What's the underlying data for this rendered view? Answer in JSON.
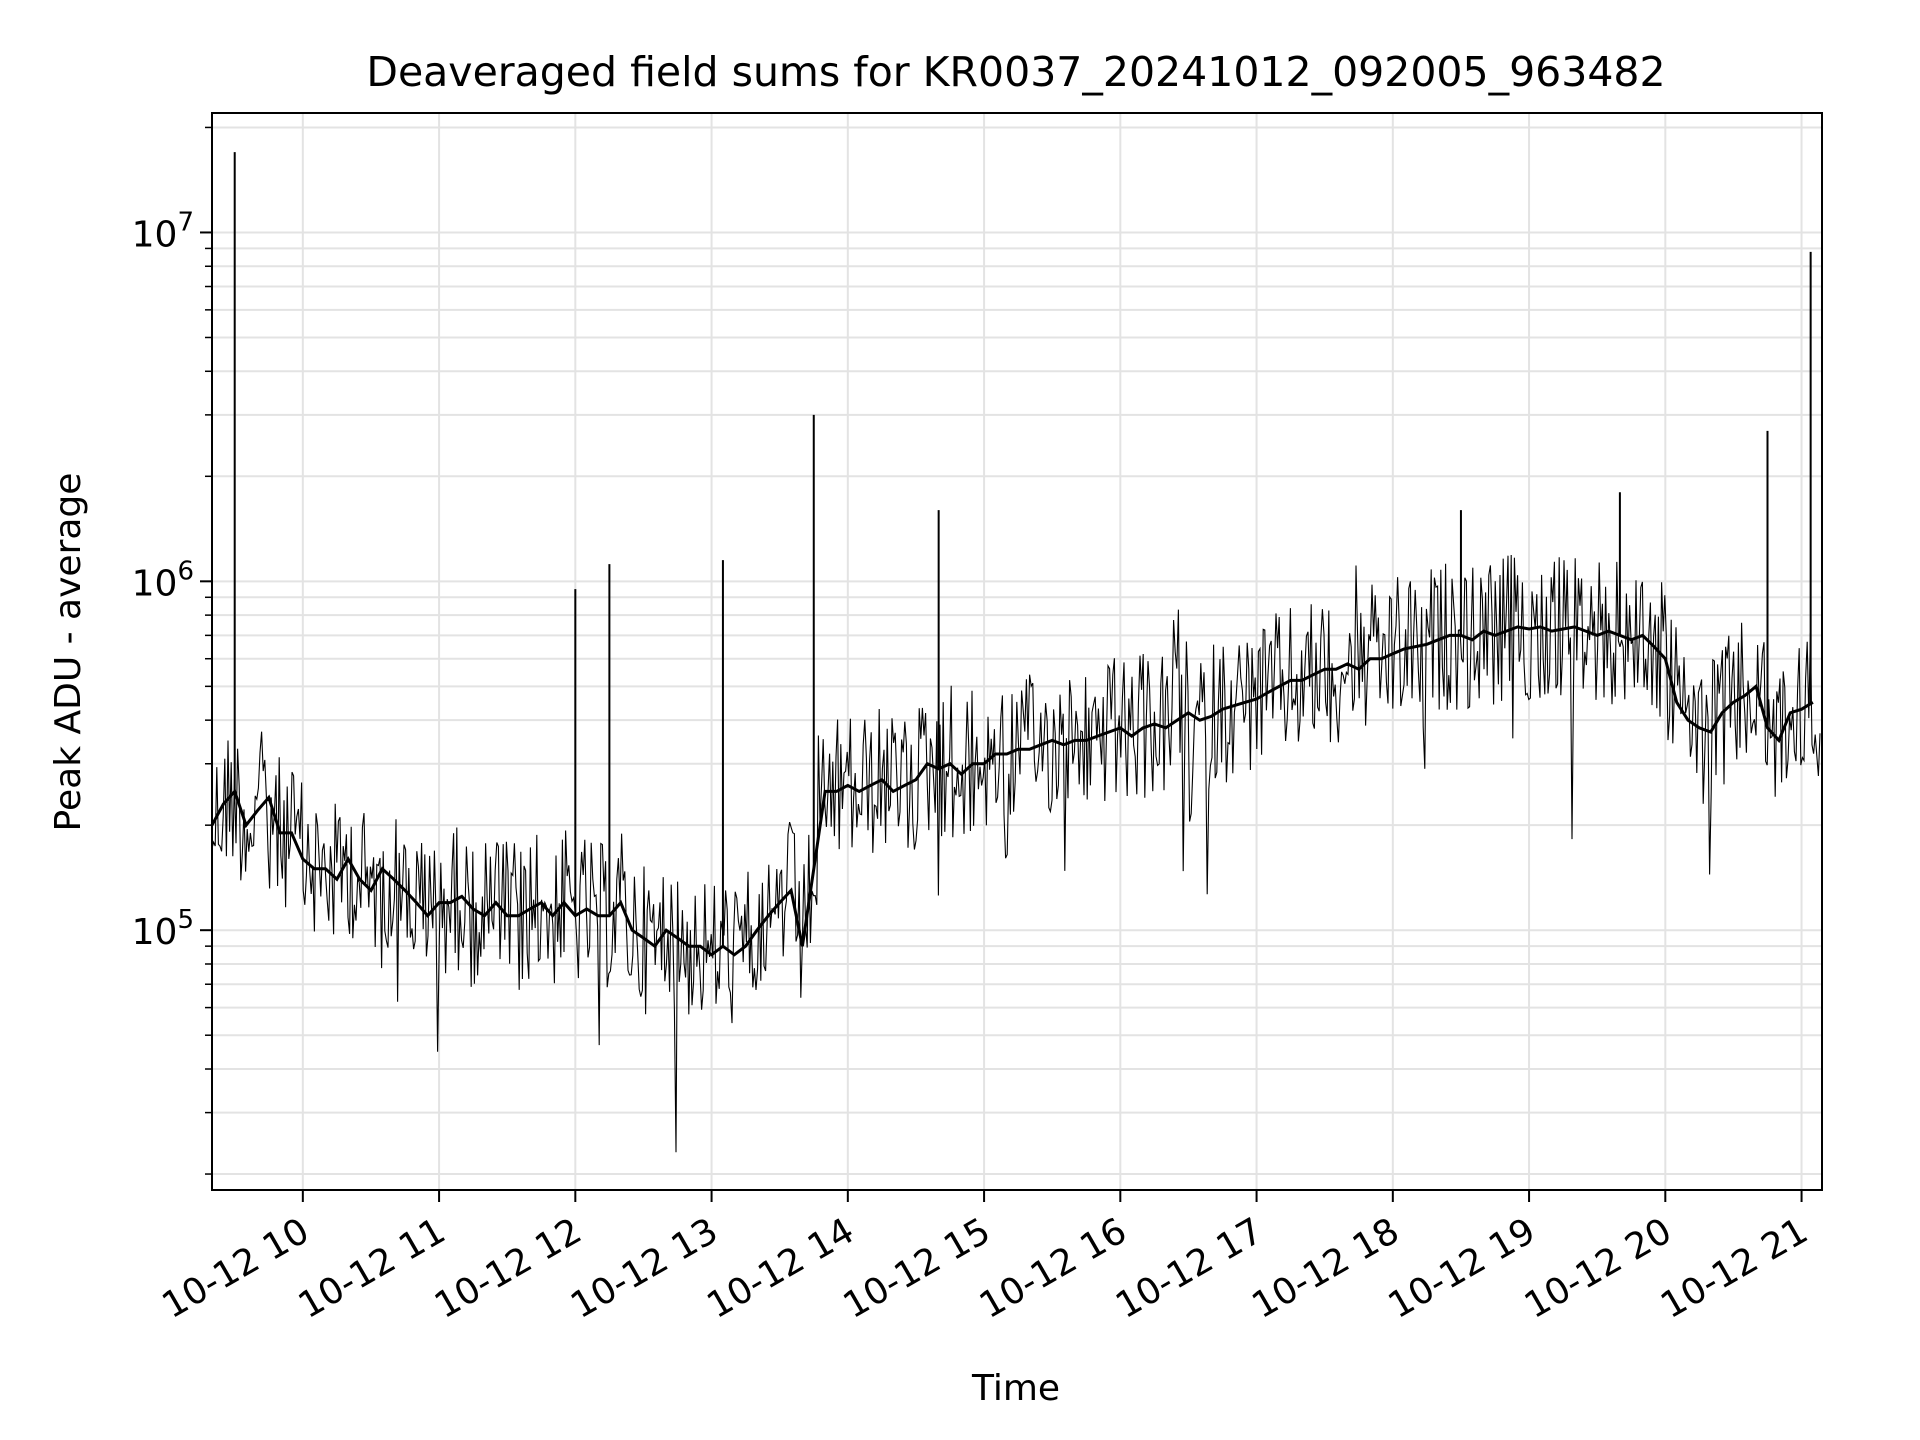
{
  "chart_data": {
    "type": "line",
    "title": "Deaveraged field sums for KR0037_20241012_092005_963482",
    "xlabel": "Time",
    "ylabel": "Peak ADU - average",
    "xlim": [
      "2024-10-12 09:20",
      "2024-10-12 21:09"
    ],
    "ylim": [
      18000,
      22000000
    ],
    "yscale": "log",
    "grid": true,
    "line_color": "#000000",
    "x_ticks": [
      {
        "t": "2024-10-12 10:00",
        "label": "10-12 10"
      },
      {
        "t": "2024-10-12 11:00",
        "label": "10-12 11"
      },
      {
        "t": "2024-10-12 12:00",
        "label": "10-12 12"
      },
      {
        "t": "2024-10-12 13:00",
        "label": "10-12 13"
      },
      {
        "t": "2024-10-12 14:00",
        "label": "10-12 14"
      },
      {
        "t": "2024-10-12 15:00",
        "label": "10-12 15"
      },
      {
        "t": "2024-10-12 16:00",
        "label": "10-12 16"
      },
      {
        "t": "2024-10-12 17:00",
        "label": "10-12 17"
      },
      {
        "t": "2024-10-12 18:00",
        "label": "10-12 18"
      },
      {
        "t": "2024-10-12 19:00",
        "label": "10-12 19"
      },
      {
        "t": "2024-10-12 20:00",
        "label": "10-12 20"
      },
      {
        "t": "2024-10-12 21:00",
        "label": "10-12 21"
      }
    ],
    "y_ticks": [
      {
        "value": 100000,
        "base": "10",
        "exp": "5"
      },
      {
        "value": 1000000,
        "base": "10",
        "exp": "6"
      },
      {
        "value": 10000000,
        "base": "10",
        "exp": "7"
      }
    ],
    "series": [
      {
        "x": [
          "2024-10-12 09:20",
          "2024-10-12 09:25",
          "2024-10-12 09:30",
          "2024-10-12 09:35",
          "2024-10-12 09:40",
          "2024-10-12 09:45",
          "2024-10-12 09:50",
          "2024-10-12 09:55",
          "2024-10-12 10:00",
          "2024-10-12 10:05",
          "2024-10-12 10:10",
          "2024-10-12 10:15",
          "2024-10-12 10:20",
          "2024-10-12 10:25",
          "2024-10-12 10:30",
          "2024-10-12 10:35",
          "2024-10-12 10:40",
          "2024-10-12 10:45",
          "2024-10-12 10:50",
          "2024-10-12 10:55",
          "2024-10-12 11:00",
          "2024-10-12 11:05",
          "2024-10-12 11:10",
          "2024-10-12 11:15",
          "2024-10-12 11:20",
          "2024-10-12 11:25",
          "2024-10-12 11:30",
          "2024-10-12 11:35",
          "2024-10-12 11:40",
          "2024-10-12 11:45",
          "2024-10-12 11:50",
          "2024-10-12 11:55",
          "2024-10-12 12:00",
          "2024-10-12 12:05",
          "2024-10-12 12:10",
          "2024-10-12 12:15",
          "2024-10-12 12:20",
          "2024-10-12 12:25",
          "2024-10-12 12:30",
          "2024-10-12 12:35",
          "2024-10-12 12:40",
          "2024-10-12 12:45",
          "2024-10-12 12:50",
          "2024-10-12 12:55",
          "2024-10-12 13:00",
          "2024-10-12 13:05",
          "2024-10-12 13:10",
          "2024-10-12 13:15",
          "2024-10-12 13:20",
          "2024-10-12 13:25",
          "2024-10-12 13:30",
          "2024-10-12 13:35",
          "2024-10-12 13:40",
          "2024-10-12 13:45",
          "2024-10-12 13:50",
          "2024-10-12 13:55",
          "2024-10-12 14:00",
          "2024-10-12 14:05",
          "2024-10-12 14:10",
          "2024-10-12 14:15",
          "2024-10-12 14:20",
          "2024-10-12 14:25",
          "2024-10-12 14:30",
          "2024-10-12 14:35",
          "2024-10-12 14:40",
          "2024-10-12 14:45",
          "2024-10-12 14:50",
          "2024-10-12 14:55",
          "2024-10-12 15:00",
          "2024-10-12 15:05",
          "2024-10-12 15:10",
          "2024-10-12 15:15",
          "2024-10-12 15:20",
          "2024-10-12 15:25",
          "2024-10-12 15:30",
          "2024-10-12 15:35",
          "2024-10-12 15:40",
          "2024-10-12 15:45",
          "2024-10-12 15:50",
          "2024-10-12 15:55",
          "2024-10-12 16:00",
          "2024-10-12 16:05",
          "2024-10-12 16:10",
          "2024-10-12 16:15",
          "2024-10-12 16:20",
          "2024-10-12 16:25",
          "2024-10-12 16:30",
          "2024-10-12 16:35",
          "2024-10-12 16:40",
          "2024-10-12 16:45",
          "2024-10-12 16:50",
          "2024-10-12 16:55",
          "2024-10-12 17:00",
          "2024-10-12 17:05",
          "2024-10-12 17:10",
          "2024-10-12 17:15",
          "2024-10-12 17:20",
          "2024-10-12 17:25",
          "2024-10-12 17:30",
          "2024-10-12 17:35",
          "2024-10-12 17:40",
          "2024-10-12 17:45",
          "2024-10-12 17:50",
          "2024-10-12 17:55",
          "2024-10-12 18:00",
          "2024-10-12 18:05",
          "2024-10-12 18:10",
          "2024-10-12 18:15",
          "2024-10-12 18:20",
          "2024-10-12 18:25",
          "2024-10-12 18:30",
          "2024-10-12 18:35",
          "2024-10-12 18:40",
          "2024-10-12 18:45",
          "2024-10-12 18:50",
          "2024-10-12 18:55",
          "2024-10-12 19:00",
          "2024-10-12 19:05",
          "2024-10-12 19:10",
          "2024-10-12 19:15",
          "2024-10-12 19:20",
          "2024-10-12 19:25",
          "2024-10-12 19:30",
          "2024-10-12 19:35",
          "2024-10-12 19:40",
          "2024-10-12 19:45",
          "2024-10-12 19:50",
          "2024-10-12 19:55",
          "2024-10-12 20:00",
          "2024-10-12 20:05",
          "2024-10-12 20:10",
          "2024-10-12 20:15",
          "2024-10-12 20:20",
          "2024-10-12 20:25",
          "2024-10-12 20:30",
          "2024-10-12 20:35",
          "2024-10-12 20:40",
          "2024-10-12 20:45",
          "2024-10-12 20:50",
          "2024-10-12 20:55",
          "2024-10-12 21:00",
          "2024-10-12 21:05"
        ],
        "values": [
          200000,
          230000,
          250000,
          200000,
          220000,
          240000,
          190000,
          190000,
          160000,
          150000,
          150000,
          140000,
          160000,
          140000,
          130000,
          150000,
          140000,
          130000,
          120000,
          110000,
          120000,
          120000,
          125000,
          115000,
          110000,
          120000,
          110000,
          110000,
          115000,
          120000,
          110000,
          120000,
          110000,
          115000,
          110000,
          110000,
          120000,
          100000,
          95000,
          90000,
          100000,
          95000,
          90000,
          90000,
          85000,
          90000,
          85000,
          90000,
          100000,
          110000,
          120000,
          130000,
          90000,
          150000,
          250000,
          250000,
          260000,
          250000,
          260000,
          270000,
          250000,
          260000,
          270000,
          300000,
          290000,
          300000,
          280000,
          300000,
          300000,
          320000,
          320000,
          330000,
          330000,
          340000,
          350000,
          340000,
          350000,
          350000,
          360000,
          370000,
          380000,
          360000,
          380000,
          390000,
          380000,
          400000,
          420000,
          400000,
          410000,
          430000,
          440000,
          450000,
          460000,
          480000,
          500000,
          520000,
          520000,
          540000,
          560000,
          560000,
          580000,
          560000,
          600000,
          600000,
          620000,
          640000,
          650000,
          660000,
          680000,
          700000,
          700000,
          680000,
          720000,
          700000,
          720000,
          740000,
          730000,
          740000,
          720000,
          730000,
          740000,
          720000,
          700000,
          720000,
          700000,
          680000,
          700000,
          650000,
          600000,
          450000,
          400000,
          380000,
          370000,
          420000,
          450000,
          470000,
          500000,
          380000,
          350000,
          420000,
          430000,
          450000
        ]
      }
    ],
    "spikes": [
      {
        "x": "2024-10-12 09:30",
        "y": 17000000
      },
      {
        "x": "2024-10-12 12:00",
        "y": 950000
      },
      {
        "x": "2024-10-12 12:15",
        "y": 1120000
      },
      {
        "x": "2024-10-12 13:05",
        "y": 1150000
      },
      {
        "x": "2024-10-12 13:45",
        "y": 3000000
      },
      {
        "x": "2024-10-12 14:40",
        "y": 1600000
      },
      {
        "x": "2024-10-12 18:30",
        "y": 1600000
      },
      {
        "x": "2024-10-12 19:40",
        "y": 1800000
      },
      {
        "x": "2024-10-12 20:45",
        "y": 2700000
      },
      {
        "x": "2024-10-12 21:04",
        "y": 8800000
      }
    ]
  }
}
